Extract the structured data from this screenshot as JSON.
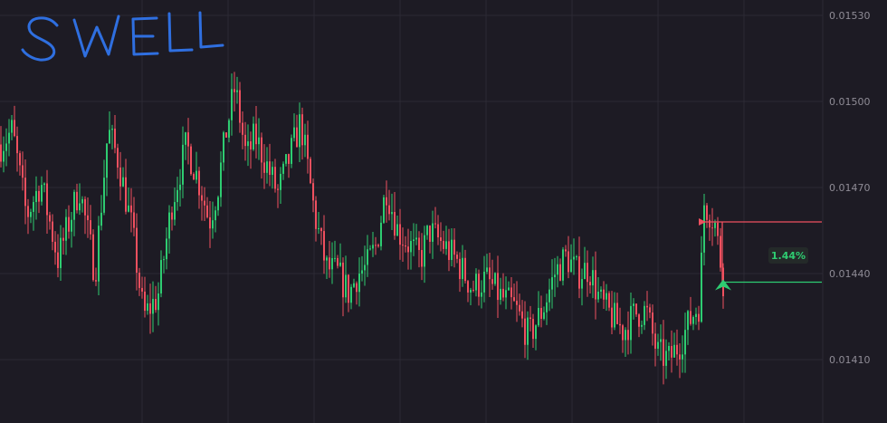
{
  "chart_data": {
    "type": "candlestick",
    "annotation_title": "SWELL",
    "ylim": [
      0.014,
      0.0154
    ],
    "y_ticks": [
      {
        "value": 0.0153,
        "label": "0.01530"
      },
      {
        "value": 0.015,
        "label": "0.01500"
      },
      {
        "value": 0.0147,
        "label": "0.01470"
      },
      {
        "value": 0.0144,
        "label": "0.01440"
      },
      {
        "value": 0.0141,
        "label": "0.01410"
      }
    ],
    "grid": true,
    "price_levels": [
      {
        "name": "entry",
        "value": 0.01458,
        "color": "#f0505f"
      },
      {
        "name": "target",
        "value": 0.01437,
        "color": "#2ecc71"
      }
    ],
    "change_badge": "1.44%",
    "candle_count": 267,
    "path_anchors": [
      [
        0,
        0.01485
      ],
      [
        8,
        0.0149
      ],
      [
        18,
        0.0146
      ],
      [
        28,
        0.01472
      ],
      [
        40,
        0.01445
      ],
      [
        55,
        0.0147
      ],
      [
        66,
        0.0144
      ],
      [
        75,
        0.0149
      ],
      [
        82,
        0.0148
      ],
      [
        92,
        0.01455
      ],
      [
        100,
        0.01425
      ],
      [
        110,
        0.01432
      ],
      [
        120,
        0.01465
      ],
      [
        130,
        0.01485
      ],
      [
        140,
        0.0147
      ],
      [
        146,
        0.01458
      ],
      [
        152,
        0.0147
      ],
      [
        158,
        0.0149
      ],
      [
        164,
        0.01505
      ],
      [
        172,
        0.0148
      ],
      [
        178,
        0.01488
      ],
      [
        186,
        0.01478
      ],
      [
        194,
        0.01468
      ],
      [
        202,
        0.0148
      ],
      [
        210,
        0.01493
      ],
      [
        220,
        0.0146
      ],
      [
        228,
        0.01442
      ],
      [
        236,
        0.0144
      ],
      [
        244,
        0.01433
      ],
      [
        250,
        0.0144
      ],
      [
        256,
        0.01442
      ],
      [
        263,
        0.0145
      ],
      [
        270,
        0.0147
      ],
      [
        278,
        0.01455
      ],
      [
        286,
        0.0145
      ],
      [
        294,
        0.01445
      ],
      [
        300,
        0.01455
      ],
      [
        310,
        0.0145
      ],
      [
        320,
        0.01444
      ],
      [
        330,
        0.01435
      ],
      [
        340,
        0.01438
      ],
      [
        350,
        0.01432
      ],
      [
        360,
        0.01428
      ],
      [
        370,
        0.01418
      ],
      [
        380,
        0.01428
      ],
      [
        388,
        0.0144
      ],
      [
        396,
        0.01446
      ],
      [
        404,
        0.0144
      ],
      [
        412,
        0.01442
      ],
      [
        420,
        0.0143
      ],
      [
        428,
        0.01425
      ],
      [
        436,
        0.0142
      ],
      [
        444,
        0.01426
      ],
      [
        452,
        0.01427
      ],
      [
        460,
        0.01412
      ],
      [
        468,
        0.0141
      ],
      [
        476,
        0.01416
      ],
      [
        484,
        0.01425
      ],
      [
        490,
        0.0143
      ],
      [
        492,
        0.01465
      ],
      [
        496,
        0.01462
      ],
      [
        500,
        0.01458
      ],
      [
        503,
        0.01448
      ],
      [
        506,
        0.01438
      ]
    ],
    "colors": {
      "up": "#2ecc71",
      "down": "#f0505f",
      "grid": "#2b2934",
      "axis_text": "#8f8c96",
      "annotation": "#2f6fe0"
    }
  }
}
